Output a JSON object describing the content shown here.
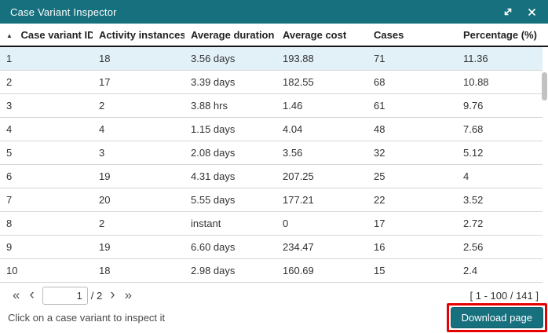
{
  "dialog": {
    "title": "Case Variant Inspector",
    "expand_icon": "expand-diagonal",
    "close_icon": "close-x"
  },
  "table": {
    "sort_icon": "▲",
    "columns": [
      "Case variant ID",
      "Activity instances",
      "Average duration",
      "Average cost",
      "Cases",
      "Percentage (%)"
    ],
    "selected_row_index": 0,
    "rows": [
      [
        "1",
        "18",
        "3.56 days",
        "193.88",
        "71",
        "11.36"
      ],
      [
        "2",
        "17",
        "3.39 days",
        "182.55",
        "68",
        "10.88"
      ],
      [
        "3",
        "2",
        "3.88 hrs",
        "1.46",
        "61",
        "9.76"
      ],
      [
        "4",
        "4",
        "1.15 days",
        "4.04",
        "48",
        "7.68"
      ],
      [
        "5",
        "3",
        "2.08 days",
        "3.56",
        "32",
        "5.12"
      ],
      [
        "6",
        "19",
        "4.31 days",
        "207.25",
        "25",
        "4"
      ],
      [
        "7",
        "20",
        "5.55 days",
        "177.21",
        "22",
        "3.52"
      ],
      [
        "8",
        "2",
        "instant",
        "0",
        "17",
        "2.72"
      ],
      [
        "9",
        "19",
        "6.60 days",
        "234.47",
        "16",
        "2.56"
      ],
      [
        "10",
        "18",
        "2.98 days",
        "160.69",
        "15",
        "2.4"
      ]
    ]
  },
  "pagination": {
    "first_label": "«",
    "prev_label": "‹",
    "page_value": "1",
    "total_label": "/ 2",
    "next_label": "›",
    "last_label": "»",
    "range_label": "[ 1 - 100 / 141 ]"
  },
  "footer": {
    "hint": "Click on a case variant to inspect it",
    "download_label": "Download page"
  },
  "colors": {
    "accent": "#17707E",
    "selected_row": "#e2f1f8",
    "annotation": "#e60000",
    "header_underline": "#161616"
  }
}
